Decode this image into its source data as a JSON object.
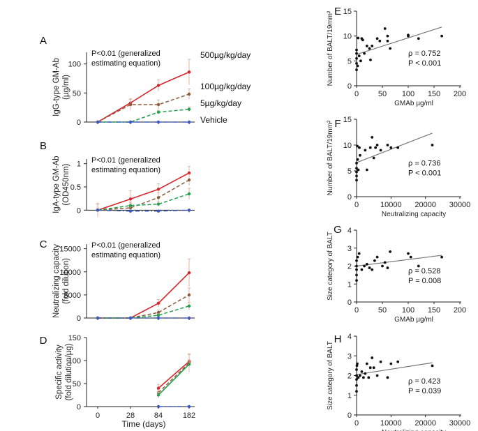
{
  "colors": {
    "red": "#d7262b",
    "brown": "#8b5a3c",
    "green": "#23a04f",
    "blue": "#3a57c4",
    "axis": "#222222",
    "error": "#e7b4a0",
    "fit": "#777777"
  },
  "chart_data": [
    {
      "id": "A",
      "panel_label": "A",
      "type": "line",
      "ylabel": [
        "IgG-type GM-Ab",
        "(µg/ml)"
      ],
      "annotation": [
        "P<0.01 (generalized",
        "estimating equation)"
      ],
      "x_categories": [
        "0",
        "28",
        "84",
        "182"
      ],
      "ylim": [
        0,
        120
      ],
      "yticks": [
        0,
        50,
        100
      ],
      "show_xticklabels": false,
      "series": [
        {
          "name": "500µg/kg/day",
          "color": "red",
          "style": "solid",
          "values": [
            0,
            33,
            63,
            86
          ],
          "errors": [
            0,
            6,
            10,
            22
          ]
        },
        {
          "name": "100µg/kg/day",
          "color": "brown",
          "style": "dash",
          "values": [
            0,
            30,
            30,
            48
          ],
          "errors": [
            0,
            10,
            8,
            9
          ]
        },
        {
          "name": "5µg/kg/day",
          "color": "green",
          "style": "dash",
          "values": [
            0,
            0,
            17,
            22
          ],
          "errors": [
            0,
            0,
            3,
            4
          ]
        },
        {
          "name": "Vehicle",
          "color": "blue",
          "style": "dashdot",
          "values": [
            0,
            0,
            0,
            0
          ],
          "errors": [
            0,
            0,
            0,
            0
          ]
        }
      ],
      "legend": [
        "500µg/kg/day",
        "100µg/kg/day",
        "5µg/kg/day",
        "Vehicle"
      ]
    },
    {
      "id": "B",
      "panel_label": "B",
      "type": "line",
      "ylabel": [
        "IgA-type GM-Ab",
        "(OD450nm)"
      ],
      "annotation": [
        "P<0.01 (generalized",
        "estimating equation)"
      ],
      "x_categories": [
        "0",
        "28",
        "84",
        "182"
      ],
      "ylim": [
        -0.1,
        1.1
      ],
      "yticks": [
        0,
        0.5,
        1
      ],
      "ytick_labels": [
        "0",
        "0.5",
        "1"
      ],
      "show_xticklabels": false,
      "series": [
        {
          "name": "500µg/kg/day",
          "color": "red",
          "style": "solid",
          "values": [
            0,
            0.24,
            0.45,
            0.8
          ],
          "errors": [
            0.15,
            0.18,
            0.12,
            0.14
          ]
        },
        {
          "name": "100µg/kg/day",
          "color": "brown",
          "style": "dash",
          "values": [
            0,
            0.05,
            0.27,
            0.65
          ],
          "errors": [
            0.12,
            0.12,
            0.1,
            0.12
          ]
        },
        {
          "name": "5µg/kg/day",
          "color": "green",
          "style": "dash",
          "values": [
            0,
            0.1,
            0.13,
            0.35
          ],
          "errors": [
            0.05,
            0.05,
            0.05,
            0.12
          ]
        },
        {
          "name": "Vehicle",
          "color": "blue",
          "style": "dashdot",
          "values": [
            0,
            -0.02,
            -0.02,
            0
          ],
          "errors": [
            0,
            0,
            0,
            0
          ]
        }
      ]
    },
    {
      "id": "C",
      "panel_label": "C",
      "type": "line",
      "ylabel": [
        "Neutralizing capacity",
        "(fold dilution)"
      ],
      "annotation": [
        "P<0.01 (generalized",
        "estimating equation)"
      ],
      "x_categories": [
        "0",
        "28",
        "84",
        "182"
      ],
      "ylim": [
        0,
        16000
      ],
      "yticks": [
        0,
        5000,
        10000,
        15000
      ],
      "show_xticklabels": false,
      "series": [
        {
          "name": "500µg/kg/day",
          "color": "red",
          "style": "solid",
          "values": [
            0,
            0,
            3200,
            9800
          ],
          "errors": [
            0,
            0,
            800,
            3000
          ]
        },
        {
          "name": "100µg/kg/day",
          "color": "brown",
          "style": "dash",
          "values": [
            0,
            0,
            1200,
            5000
          ],
          "errors": [
            0,
            0,
            500,
            1500
          ]
        },
        {
          "name": "5µg/kg/day",
          "color": "green",
          "style": "dash",
          "values": [
            0,
            0,
            600,
            2600
          ],
          "errors": [
            0,
            0,
            300,
            800
          ]
        },
        {
          "name": "Vehicle",
          "color": "blue",
          "style": "dashdot",
          "values": [
            0,
            0,
            0,
            0
          ],
          "errors": [
            0,
            0,
            0,
            0
          ]
        }
      ]
    },
    {
      "id": "D",
      "panel_label": "D",
      "type": "line",
      "ylabel": [
        "Specific activity",
        "(fold dilution/µg)"
      ],
      "x_categories": [
        "0",
        "28",
        "84",
        "182"
      ],
      "xlabel": "Time (days)",
      "ylim": [
        0,
        150
      ],
      "yticks": [
        0,
        50,
        100,
        150
      ],
      "show_xticklabels": true,
      "series": [
        {
          "name": "500µg/kg/day",
          "color": "red",
          "style": "solid",
          "values": [
            null,
            null,
            40,
            98
          ],
          "errors": [
            0,
            0,
            8,
            15
          ]
        },
        {
          "name": "100µg/kg/day",
          "color": "brown",
          "style": "dash",
          "values": [
            null,
            null,
            30,
            95
          ],
          "errors": [
            0,
            0,
            6,
            20
          ]
        },
        {
          "name": "5µg/kg/day",
          "color": "green",
          "style": "solid",
          "values": [
            null,
            null,
            25,
            92
          ],
          "errors": [
            0,
            0,
            6,
            10
          ]
        },
        {
          "name": "Vehicle",
          "color": "blue",
          "style": "dashdot",
          "values": [
            null,
            null,
            0,
            0
          ],
          "errors": [
            0,
            0,
            0,
            0
          ]
        }
      ]
    },
    {
      "id": "E",
      "panel_label": "E",
      "type": "scatter",
      "ylabel": [
        "Number of BALT/19mm²"
      ],
      "xlabel": "GMAb µg/ml",
      "xlim": [
        0,
        200
      ],
      "xticks": [
        0,
        50,
        100,
        150,
        200
      ],
      "ylim": [
        0,
        15
      ],
      "yticks": [
        0,
        5,
        10,
        15
      ],
      "stats": [
        "ρ = 0.752",
        "P < 0.001"
      ],
      "fit": [
        [
          0,
          6.3
        ],
        [
          165,
          11.8
        ]
      ],
      "points": [
        [
          0,
          3.2
        ],
        [
          0,
          4.5
        ],
        [
          0,
          5.5
        ],
        [
          0,
          6.5
        ],
        [
          0,
          7.2
        ],
        [
          2,
          4
        ],
        [
          3,
          9.6
        ],
        [
          5,
          6
        ],
        [
          8,
          5
        ],
        [
          10,
          9.5
        ],
        [
          12,
          9.2
        ],
        [
          15,
          6.5
        ],
        [
          20,
          8
        ],
        [
          25,
          7.5
        ],
        [
          27,
          5.2
        ],
        [
          30,
          8
        ],
        [
          40,
          9.5
        ],
        [
          45,
          9
        ],
        [
          55,
          11.5
        ],
        [
          60,
          9
        ],
        [
          60,
          10
        ],
        [
          65,
          7.5
        ],
        [
          100,
          10
        ],
        [
          100,
          10.2
        ],
        [
          120,
          9.5
        ],
        [
          165,
          10
        ]
      ]
    },
    {
      "id": "F",
      "panel_label": "F",
      "type": "scatter",
      "ylabel": [
        "Number of BALT/19mm²"
      ],
      "xlabel": "Neutralizing capacity",
      "xlim": [
        0,
        30000
      ],
      "xticks": [
        0,
        10000,
        20000,
        30000
      ],
      "ylim": [
        0,
        15
      ],
      "yticks": [
        0,
        5,
        10,
        15
      ],
      "stats": [
        "ρ = 0.736",
        "P < 0.001"
      ],
      "fit": [
        [
          0,
          6.6
        ],
        [
          22000,
          12.3
        ]
      ],
      "points": [
        [
          0,
          3.2
        ],
        [
          0,
          4
        ],
        [
          0,
          4.8
        ],
        [
          0,
          5.5
        ],
        [
          0,
          6.5
        ],
        [
          200,
          9.8
        ],
        [
          300,
          7.2
        ],
        [
          500,
          5.2
        ],
        [
          800,
          9.5
        ],
        [
          1000,
          8
        ],
        [
          2500,
          9
        ],
        [
          3000,
          5.2
        ],
        [
          4000,
          9.5
        ],
        [
          4500,
          11.5
        ],
        [
          5000,
          7.5
        ],
        [
          5500,
          9.5
        ],
        [
          6000,
          10
        ],
        [
          7000,
          9
        ],
        [
          9000,
          10
        ],
        [
          10000,
          9.5
        ],
        [
          12000,
          9.5
        ],
        [
          22000,
          10
        ]
      ]
    },
    {
      "id": "G",
      "panel_label": "G",
      "type": "scatter",
      "ylabel": [
        "Size category of BALT"
      ],
      "xlabel": "GMAb µg/ml",
      "xlim": [
        0,
        200
      ],
      "xticks": [
        0,
        50,
        100,
        150,
        200
      ],
      "ylim": [
        0,
        4
      ],
      "yticks": [
        0,
        1,
        2,
        3,
        4
      ],
      "stats": [
        "ρ = 0.528",
        "P = 0.008"
      ],
      "fit": [
        [
          0,
          2.0
        ],
        [
          165,
          2.6
        ]
      ],
      "points": [
        [
          0,
          1.2
        ],
        [
          0,
          1.5
        ],
        [
          0,
          1.8
        ],
        [
          0,
          2.0
        ],
        [
          0,
          2.3
        ],
        [
          2,
          2.5
        ],
        [
          5,
          2.7
        ],
        [
          10,
          1.8
        ],
        [
          15,
          2.0
        ],
        [
          20,
          2.1
        ],
        [
          25,
          1.9
        ],
        [
          30,
          1.8
        ],
        [
          35,
          2.3
        ],
        [
          40,
          2.5
        ],
        [
          50,
          2.0
        ],
        [
          55,
          2.2
        ],
        [
          60,
          1.9
        ],
        [
          65,
          2.8
        ],
        [
          100,
          2.7
        ],
        [
          105,
          2.5
        ],
        [
          120,
          2.0
        ],
        [
          165,
          2.5
        ]
      ]
    },
    {
      "id": "H",
      "panel_label": "H",
      "type": "scatter",
      "ylabel": [
        "Size category of BALT"
      ],
      "xlabel": "Neutralizing capacity",
      "xlim": [
        0,
        30000
      ],
      "xticks": [
        0,
        10000,
        20000,
        30000
      ],
      "ylim": [
        0,
        4
      ],
      "yticks": [
        0,
        1,
        2,
        3,
        4
      ],
      "stats": [
        "ρ = 0.423",
        "P = 0.039"
      ],
      "fit": [
        [
          0,
          2.05
        ],
        [
          22000,
          2.65
        ]
      ],
      "points": [
        [
          0,
          1.2
        ],
        [
          0,
          1.5
        ],
        [
          0,
          1.8
        ],
        [
          0,
          2.0
        ],
        [
          0,
          2.3
        ],
        [
          100,
          2.5
        ],
        [
          200,
          2.6
        ],
        [
          500,
          1.9
        ],
        [
          1000,
          2.0
        ],
        [
          1500,
          2.2
        ],
        [
          2000,
          1.9
        ],
        [
          2500,
          2.1
        ],
        [
          3000,
          2.6
        ],
        [
          3500,
          1.9
        ],
        [
          4000,
          2.4
        ],
        [
          4500,
          2.9
        ],
        [
          5000,
          2.4
        ],
        [
          6000,
          2.0
        ],
        [
          7000,
          2.7
        ],
        [
          9000,
          1.9
        ],
        [
          10000,
          2.6
        ],
        [
          12000,
          2.7
        ],
        [
          22000,
          2.5
        ]
      ]
    }
  ]
}
